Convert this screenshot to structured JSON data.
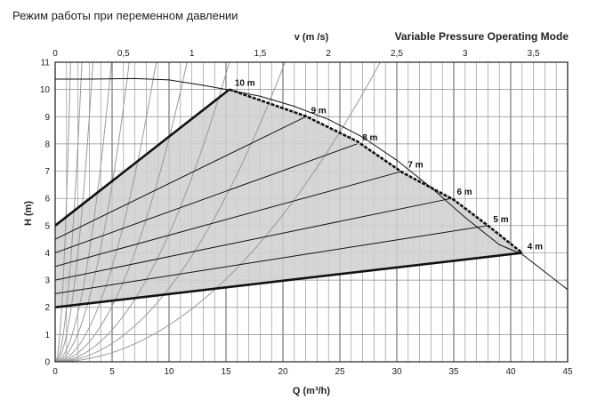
{
  "title_ru": "Режим работы при переменном давлении",
  "chart_data": {
    "type": "line",
    "title": "Variable Pressure Operating Mode",
    "xlabel": "Q (m³/h)",
    "ylabel": "H (m)",
    "top_axis_label": "v (m /s)",
    "xlim": [
      0,
      45
    ],
    "ylim": [
      0,
      11
    ],
    "v_lim": [
      0,
      3.75
    ],
    "x_ticks": [
      "0",
      "5",
      "10",
      "15",
      "20",
      "25",
      "30",
      "35",
      "40",
      "45"
    ],
    "y_ticks": [
      "0",
      "1",
      "2",
      "3",
      "4",
      "5",
      "6",
      "7",
      "8",
      "9",
      "10",
      "11"
    ],
    "v_ticks": [
      {
        "v": 0,
        "label": "0"
      },
      {
        "v": 0.5,
        "label": "0,5"
      },
      {
        "v": 1,
        "label": "1"
      },
      {
        "v": 1.5,
        "label": "1,5"
      },
      {
        "v": 2,
        "label": "2"
      },
      {
        "v": 2.5,
        "label": "2,5"
      },
      {
        "v": 3,
        "label": "3"
      },
      {
        "v": 3.5,
        "label": "3,5"
      }
    ],
    "grid": true,
    "max_curve": [
      [
        0,
        10.38
      ],
      [
        3,
        10.38
      ],
      [
        7,
        10.4
      ],
      [
        10,
        10.35
      ],
      [
        13,
        10.15
      ],
      [
        15,
        10.0
      ],
      [
        18,
        9.75
      ],
      [
        21,
        9.38
      ],
      [
        24,
        8.9
      ],
      [
        27,
        8.25
      ],
      [
        30,
        7.4
      ],
      [
        33,
        6.4
      ],
      [
        36,
        5.3
      ],
      [
        39,
        4.3
      ],
      [
        41,
        3.95
      ],
      [
        43,
        3.3
      ],
      [
        45,
        2.65
      ]
    ],
    "control_upper": [
      [
        0,
        5
      ],
      [
        15.3,
        10
      ],
      [
        22,
        9.02
      ],
      [
        26.5,
        8.1
      ],
      [
        30.5,
        6.95
      ],
      [
        35,
        5.95
      ],
      [
        38,
        5.0
      ],
      [
        41,
        4.0
      ]
    ],
    "control_lower": [
      [
        0,
        2
      ],
      [
        41,
        4
      ]
    ],
    "family_lines": [
      {
        "name": "10 m",
        "points": [
          [
            0,
            5.0
          ],
          [
            15.3,
            10.0
          ]
        ]
      },
      {
        "name": "9 m",
        "points": [
          [
            0,
            4.5
          ],
          [
            22.0,
            9.0
          ]
        ]
      },
      {
        "name": "8 m",
        "points": [
          [
            0,
            4.0
          ],
          [
            26.5,
            8.0
          ]
        ]
      },
      {
        "name": "7 m",
        "points": [
          [
            0,
            3.5
          ],
          [
            30.5,
            7.0
          ]
        ]
      },
      {
        "name": "6 m",
        "points": [
          [
            0,
            3.0
          ],
          [
            34.8,
            6.0
          ]
        ]
      },
      {
        "name": "5 m",
        "points": [
          [
            0,
            2.5
          ],
          [
            38.0,
            5.0
          ]
        ]
      },
      {
        "name": "4 m",
        "points": [
          [
            0,
            2.0
          ],
          [
            41.0,
            4.0
          ]
        ]
      }
    ],
    "system_curve_k": [
      6,
      2,
      1,
      0.45,
      0.26,
      0.14,
      0.082,
      0.047,
      0.027,
      0.0135
    ],
    "colors": {
      "fill": "#cfcfcf",
      "grid": "#8a8a8a",
      "system": "#9a9a9a",
      "line": "#111111"
    }
  }
}
